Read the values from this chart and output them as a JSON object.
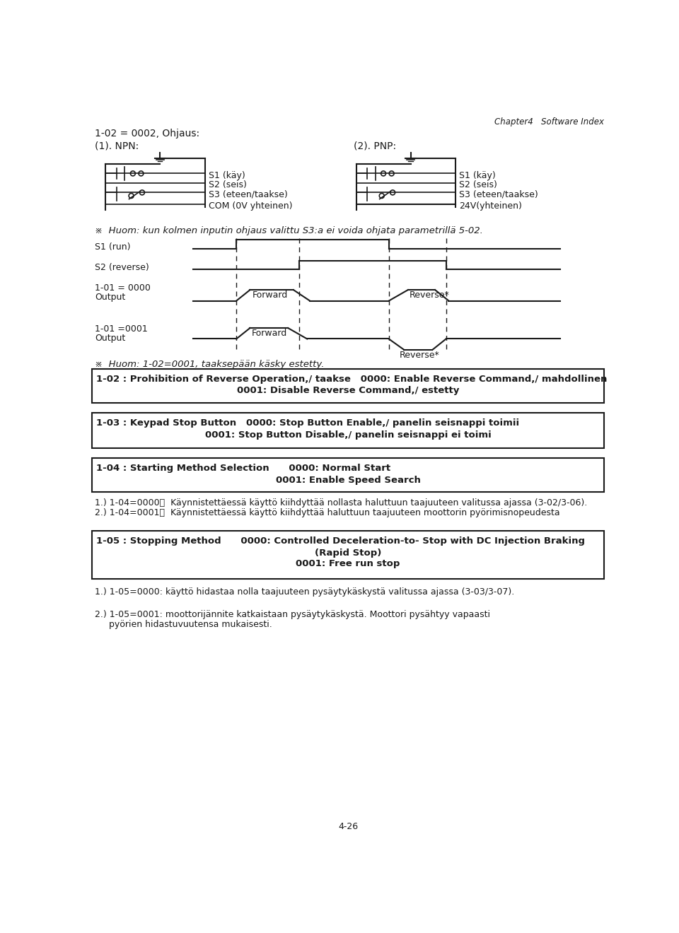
{
  "title_header": "Chapter4   Software Index",
  "line1": "1-02 = 0002, Ohjaus:",
  "line2_left": "(1). NPN:",
  "line2_right": "(2). PNP:",
  "npn_labels": [
    "S1 (käy)",
    "S2 (seis)",
    "S3 (eteen/taakse)",
    "COM (0V yhteinen)"
  ],
  "pnp_labels": [
    "S1 (käy)",
    "S2 (seis)",
    "S3 (eteen/taakse)",
    "24V(yhteinen)"
  ],
  "note1": "※  Huom: kun kolmen inputin ohjaus valittu S3:a ei voida ohjata parametrillä 5-02.",
  "s1_label": "S1 (run)",
  "s2_label": "S2 (reverse)",
  "label_1_01_0000": "1-01 = 0000",
  "label_output1": "Output",
  "label_forward1": "Forward",
  "label_reverse1": "Reverse*",
  "label_1_01_0001": "1-01 =0001",
  "label_output2": "Output",
  "label_forward2": "Forward",
  "label_reverse2": "Reverse*",
  "note2": "※  Huom: 1-02=0001, taaksepään käsky estetty.",
  "box1_line1": "1-02 : Prohibition of Reverse Operation,/ taakse   0000: Enable Reverse Command,/ mahdollinen",
  "box1_line2": "0001: Disable Reverse Command,/ estetty",
  "box2_line1": "1-03 : Keypad Stop Button   0000: Stop Button Enable,/ panelin seisnappi toimii",
  "box2_line2": "0001: Stop Button Disable,/ panelin seisnappi ei toimi",
  "box3_line1": "1-04 : Starting Method Selection      0000: Normal Start",
  "box3_line2": "0001: Enable Speed Search",
  "text_104_1": "1.) 1-04=0000：  Käynnistettäessä käyttö kiihdyttää nollasta haluttuun taajuuteen valitussa ajassa (3-02/3-06).",
  "text_104_2": "2.) 1-04=0001：  Käynnistettäessä käyttö kiihdyttää haluttuun taajuuteen moottorin pyörimisnopeudesta",
  "box4_line1": "1-05 : Stopping Method      0000: Controlled Deceleration-to- Stop with DC Injection Braking",
  "box4_line2": "(Rapid Stop)",
  "box4_line3": "0001: Free run stop",
  "text_105_1": "1.) 1-05=0000: käyttö hidastaa nolla taajuuteen pysäytykäskystä valitussa ajassa (3-03/3-07).",
  "text_105_2": "2.) 1-05=0001: moottorijännite katkaistaan pysäytykäskystä. Moottori pysähtyy vapaasti",
  "text_105_3": "     pyörien hidastuvuutensa mukaisesti.",
  "footer": "4-26",
  "bg_color": "#ffffff",
  "text_color": "#1a1a1a",
  "line_color": "#1a1a1a"
}
